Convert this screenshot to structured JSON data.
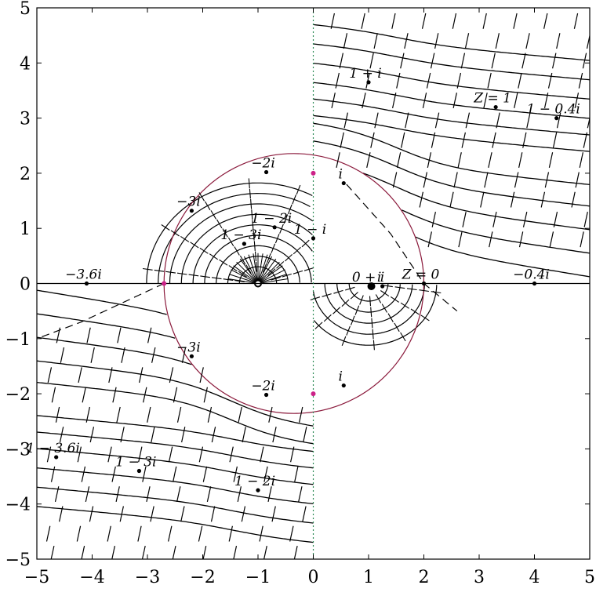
{
  "chart_data": {
    "type": "line",
    "title": "",
    "xlabel": "",
    "ylabel": "",
    "xlim": [
      -5,
      5
    ],
    "ylim": [
      -5,
      5
    ],
    "xticks": [
      -5,
      -4,
      -3,
      -2,
      -1,
      0,
      1,
      2,
      3,
      4,
      5
    ],
    "yticks": [
      -5,
      -4,
      -3,
      -2,
      -1,
      0,
      1,
      2,
      3,
      4,
      5
    ],
    "xtick_labels": [
      "−5",
      "−4",
      "−3",
      "−2",
      "−1",
      "0",
      "1",
      "2",
      "3",
      "4",
      "5"
    ],
    "ytick_labels": [
      "−5",
      "−4",
      "−3",
      "−2",
      "−1",
      "0",
      "1",
      "2",
      "3",
      "4",
      "5"
    ],
    "grid": false,
    "circle": {
      "center": [
        -0.35,
        0
      ],
      "radius": 2.35,
      "color": "#8b1a3c"
    },
    "colors": {
      "curves": "#000000",
      "circle": "#8b1a3c",
      "markers": "#cc2288",
      "axis_dotted": "#2e8b57"
    },
    "magenta_points": [
      [
        -2.7,
        0
      ],
      [
        0,
        2.0
      ],
      [
        0,
        -2.0
      ]
    ],
    "annotations": [
      {
        "label": "1 + i",
        "x": 1.0,
        "y": 3.65
      },
      {
        "label": "Z = 1",
        "x": 3.3,
        "y": 3.2
      },
      {
        "label": "1 − 0.4i",
        "x": 4.4,
        "y": 3.0
      },
      {
        "label": "−2i",
        "x": -0.85,
        "y": 2.02
      },
      {
        "label": "i",
        "x": 0.55,
        "y": 1.82
      },
      {
        "label": "−3i",
        "x": -2.2,
        "y": 1.32
      },
      {
        "label": "1 − 2i",
        "x": -0.7,
        "y": 1.02
      },
      {
        "label": "1 − 3i",
        "x": -1.25,
        "y": 0.72
      },
      {
        "label": "1 − i",
        "x": 0.0,
        "y": 0.82
      },
      {
        "label": "−3.6i",
        "x": -4.1,
        "y": 0.0
      },
      {
        "label": "0 + i",
        "x": 1.05,
        "y": -0.05
      },
      {
        "label": "i",
        "x": 1.25,
        "y": -0.05
      },
      {
        "label": "Z = 0",
        "x": 2.0,
        "y": 0.0
      },
      {
        "label": "−0.4i",
        "x": 4.0,
        "y": 0.0
      },
      {
        "label": "−3i",
        "x": -2.2,
        "y": -1.32
      },
      {
        "label": "−2i",
        "x": -0.85,
        "y": -2.02
      },
      {
        "label": "i",
        "x": 0.55,
        "y": -1.85
      },
      {
        "label": "1 − 3.6i",
        "x": -4.65,
        "y": -3.15
      },
      {
        "label": "1 − 3i",
        "x": -3.15,
        "y": -3.4
      },
      {
        "label": "1 − 2i",
        "x": -1.0,
        "y": -3.75
      }
    ]
  }
}
